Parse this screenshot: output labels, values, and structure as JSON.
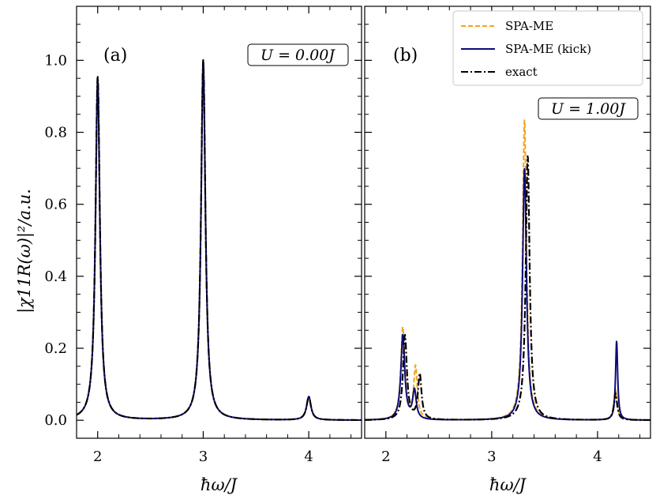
{
  "figure": {
    "ylabel": "|χ11R(ω)|²/a.u.",
    "xlabel": "ħω/J"
  },
  "colors": {
    "spa_me": "#f5a21b",
    "spa_me_kick": "#0b0b7a",
    "exact": "#000000",
    "axes": "#000000"
  },
  "chart_data": [
    {
      "type": "line",
      "panel_label": "(a)",
      "annotation": "U = 0.00J",
      "xlabel": "ħω/J",
      "ylabel": "|χ11R(ω)|²/a.u.",
      "xlim": [
        1.8,
        4.5
      ],
      "ylim": [
        -0.05,
        1.15
      ],
      "xticks": [
        2,
        3,
        4
      ],
      "yticks": [
        0.0,
        0.2,
        0.4,
        0.6,
        0.8,
        1.0
      ],
      "ytick_labels": [
        "0.0",
        "0.2",
        "0.4",
        "0.6",
        "0.8",
        "1.0"
      ],
      "series": [
        {
          "name": "SPA-ME",
          "style": "dashed",
          "color_key": "spa_me",
          "peaks": [
            {
              "x0": 2.0,
              "height": 0.95,
              "width": 0.025
            },
            {
              "x0": 3.0,
              "height": 1.0,
              "width": 0.025
            },
            {
              "x0": 4.0,
              "height": 0.065,
              "width": 0.025
            }
          ]
        },
        {
          "name": "SPA-ME (kick)",
          "style": "solid",
          "color_key": "spa_me_kick",
          "peaks": [
            {
              "x0": 2.0,
              "height": 0.95,
              "width": 0.025
            },
            {
              "x0": 3.0,
              "height": 1.0,
              "width": 0.025
            },
            {
              "x0": 4.0,
              "height": 0.065,
              "width": 0.025
            }
          ]
        },
        {
          "name": "exact",
          "style": "dashdot",
          "color_key": "exact",
          "peaks": [
            {
              "x0": 2.0,
              "height": 0.955,
              "width": 0.025
            },
            {
              "x0": 3.0,
              "height": 1.0,
              "width": 0.025
            },
            {
              "x0": 4.0,
              "height": 0.065,
              "width": 0.025
            }
          ]
        }
      ]
    },
    {
      "type": "line",
      "panel_label": "(b)",
      "annotation": "U = 1.00J",
      "xlabel": "ħω/J",
      "xlim": [
        1.8,
        4.5
      ],
      "ylim": [
        -0.05,
        1.15
      ],
      "xticks": [
        2,
        3,
        4
      ],
      "yticks": [
        0.0,
        0.2,
        0.4,
        0.6,
        0.8,
        1.0
      ],
      "legend": {
        "position": "upper right",
        "entries": [
          "SPA-ME",
          "SPA-ME (kick)",
          "exact"
        ]
      },
      "series": [
        {
          "name": "SPA-ME",
          "style": "dashed",
          "color_key": "spa_me",
          "peaks": [
            {
              "x0": 2.16,
              "height": 0.255,
              "width": 0.022
            },
            {
              "x0": 2.28,
              "height": 0.145,
              "width": 0.02
            },
            {
              "x0": 3.31,
              "height": 0.835,
              "width": 0.022
            },
            {
              "x0": 4.17,
              "height": 0.085,
              "width": 0.018
            }
          ]
        },
        {
          "name": "SPA-ME (kick)",
          "style": "solid",
          "color_key": "spa_me_kick",
          "peaks": [
            {
              "x0": 2.16,
              "height": 0.235,
              "width": 0.022
            },
            {
              "x0": 2.27,
              "height": 0.08,
              "width": 0.02
            },
            {
              "x0": 3.31,
              "height": 0.7,
              "width": 0.022
            },
            {
              "x0": 4.18,
              "height": 0.22,
              "width": 0.012
            }
          ]
        },
        {
          "name": "exact",
          "style": "dashdot",
          "color_key": "exact",
          "peaks": [
            {
              "x0": 2.18,
              "height": 0.235,
              "width": 0.022
            },
            {
              "x0": 2.32,
              "height": 0.125,
              "width": 0.02
            },
            {
              "x0": 3.34,
              "height": 0.735,
              "width": 0.022
            },
            {
              "x0": 4.17,
              "height": 0.075,
              "width": 0.018
            }
          ]
        }
      ]
    }
  ]
}
